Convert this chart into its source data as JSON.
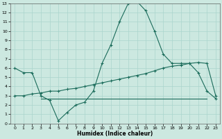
{
  "xlabel": "Humidex (Indice chaleur)",
  "xlim": [
    -0.5,
    23.5
  ],
  "ylim": [
    0,
    13
  ],
  "xticks": [
    0,
    1,
    2,
    3,
    4,
    5,
    6,
    7,
    8,
    9,
    10,
    11,
    12,
    13,
    14,
    15,
    16,
    17,
    18,
    19,
    20,
    21,
    22,
    23
  ],
  "yticks": [
    0,
    1,
    2,
    3,
    4,
    5,
    6,
    7,
    8,
    9,
    10,
    11,
    12,
    13
  ],
  "bg_color": "#cce8e0",
  "grid_color": "#aad4cc",
  "line_color": "#1a6b5a",
  "line1_x": [
    0,
    1,
    2,
    3,
    4,
    5,
    6,
    7,
    8,
    9,
    10,
    11,
    12,
    13,
    14,
    15,
    16,
    17,
    18,
    19,
    20,
    21,
    22,
    23
  ],
  "line1_y": [
    6.0,
    5.5,
    5.5,
    3.0,
    2.5,
    0.3,
    1.2,
    2.0,
    2.3,
    3.5,
    6.5,
    8.5,
    11.0,
    13.0,
    13.2,
    12.2,
    10.0,
    7.5,
    6.5,
    6.5,
    6.5,
    5.5,
    3.5,
    2.7
  ],
  "line2_x": [
    0,
    1,
    2,
    3,
    4,
    5,
    6,
    7,
    8,
    9,
    10,
    11,
    12,
    13,
    14,
    15,
    16,
    17,
    18,
    19,
    20,
    21,
    22,
    23
  ],
  "line2_y": [
    3.0,
    3.0,
    3.2,
    3.3,
    3.5,
    3.5,
    3.7,
    3.8,
    4.0,
    4.2,
    4.4,
    4.6,
    4.8,
    5.0,
    5.2,
    5.4,
    5.7,
    6.0,
    6.2,
    6.3,
    6.5,
    6.6,
    6.5,
    3.0
  ],
  "line3_x": [
    3,
    4,
    5,
    6,
    7,
    8,
    9,
    10,
    11,
    12,
    13,
    14,
    15,
    16,
    17,
    18,
    19,
    20,
    21,
    22
  ],
  "line3_y": [
    2.7,
    2.7,
    2.7,
    2.7,
    2.7,
    2.7,
    2.7,
    2.7,
    2.7,
    2.7,
    2.7,
    2.7,
    2.7,
    2.7,
    2.7,
    2.7,
    2.7,
    2.7,
    2.7,
    2.7
  ],
  "figsize": [
    3.2,
    2.0
  ],
  "dpi": 100
}
